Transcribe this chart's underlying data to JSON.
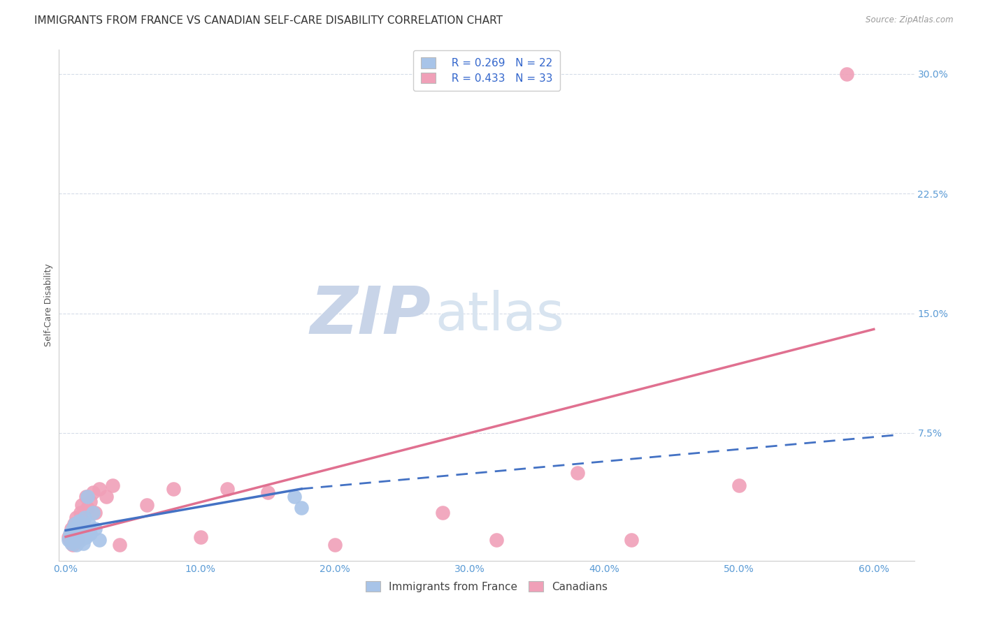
{
  "title": "IMMIGRANTS FROM FRANCE VS CANADIAN SELF-CARE DISABILITY CORRELATION CHART",
  "source": "Source: ZipAtlas.com",
  "xlabel_ticks": [
    "0.0%",
    "10.0%",
    "20.0%",
    "30.0%",
    "40.0%",
    "50.0%",
    "60.0%"
  ],
  "xlabel_vals": [
    0.0,
    0.1,
    0.2,
    0.3,
    0.4,
    0.5,
    0.6
  ],
  "ylabel": "Self-Care Disability",
  "ylabel_ticks": [
    "7.5%",
    "15.0%",
    "22.5%",
    "30.0%"
  ],
  "ylabel_vals": [
    0.075,
    0.15,
    0.225,
    0.3
  ],
  "xlim": [
    -0.005,
    0.63
  ],
  "ylim": [
    -0.005,
    0.315
  ],
  "watermark_zip": "ZIP",
  "watermark_atlas": "atlas",
  "legend_blue_r": "R = 0.269",
  "legend_blue_n": "N = 22",
  "legend_pink_r": "R = 0.433",
  "legend_pink_n": "N = 33",
  "legend_label_blue": "Immigrants from France",
  "legend_label_pink": "Canadians",
  "blue_color": "#A8C4E8",
  "pink_color": "#F0A0B8",
  "blue_line_color": "#4472C4",
  "pink_line_color": "#E07090",
  "blue_scatter": [
    [
      0.002,
      0.008
    ],
    [
      0.003,
      0.012
    ],
    [
      0.004,
      0.006
    ],
    [
      0.005,
      0.015
    ],
    [
      0.006,
      0.01
    ],
    [
      0.007,
      0.018
    ],
    [
      0.008,
      0.005
    ],
    [
      0.009,
      0.013
    ],
    [
      0.01,
      0.02
    ],
    [
      0.011,
      0.008
    ],
    [
      0.012,
      0.016
    ],
    [
      0.013,
      0.006
    ],
    [
      0.014,
      0.022
    ],
    [
      0.015,
      0.01
    ],
    [
      0.016,
      0.035
    ],
    [
      0.017,
      0.018
    ],
    [
      0.018,
      0.012
    ],
    [
      0.02,
      0.025
    ],
    [
      0.022,
      0.015
    ],
    [
      0.025,
      0.008
    ],
    [
      0.17,
      0.035
    ],
    [
      0.175,
      0.028
    ]
  ],
  "pink_scatter": [
    [
      0.002,
      0.01
    ],
    [
      0.003,
      0.008
    ],
    [
      0.004,
      0.015
    ],
    [
      0.005,
      0.005
    ],
    [
      0.006,
      0.018
    ],
    [
      0.007,
      0.012
    ],
    [
      0.008,
      0.022
    ],
    [
      0.009,
      0.008
    ],
    [
      0.01,
      0.016
    ],
    [
      0.011,
      0.025
    ],
    [
      0.012,
      0.03
    ],
    [
      0.013,
      0.02
    ],
    [
      0.015,
      0.035
    ],
    [
      0.016,
      0.028
    ],
    [
      0.018,
      0.032
    ],
    [
      0.02,
      0.038
    ],
    [
      0.022,
      0.025
    ],
    [
      0.025,
      0.04
    ],
    [
      0.03,
      0.035
    ],
    [
      0.035,
      0.042
    ],
    [
      0.04,
      0.005
    ],
    [
      0.06,
      0.03
    ],
    [
      0.08,
      0.04
    ],
    [
      0.1,
      0.01
    ],
    [
      0.12,
      0.04
    ],
    [
      0.15,
      0.038
    ],
    [
      0.2,
      0.005
    ],
    [
      0.28,
      0.025
    ],
    [
      0.32,
      0.008
    ],
    [
      0.38,
      0.05
    ],
    [
      0.42,
      0.008
    ],
    [
      0.5,
      0.042
    ],
    [
      0.58,
      0.3
    ]
  ],
  "blue_trendline": [
    [
      0.0,
      0.014
    ],
    [
      0.175,
      0.04
    ]
  ],
  "blue_trendline_ext": [
    [
      0.175,
      0.04
    ],
    [
      0.62,
      0.074
    ]
  ],
  "pink_trendline": [
    [
      0.0,
      0.01
    ],
    [
      0.6,
      0.14
    ]
  ],
  "grid_color": "#D5DCE8",
  "bg_color": "#FFFFFF",
  "title_fontsize": 11,
  "axis_label_fontsize": 9,
  "tick_fontsize": 10,
  "legend_fontsize": 11,
  "watermark_zip_color": "#C8D4E8",
  "watermark_atlas_color": "#D8E4F0",
  "watermark_fontsize_zip": 68,
  "watermark_fontsize_atlas": 55,
  "right_tick_color": "#5B9BD5",
  "bottom_tick_color": "#5B9BD5"
}
